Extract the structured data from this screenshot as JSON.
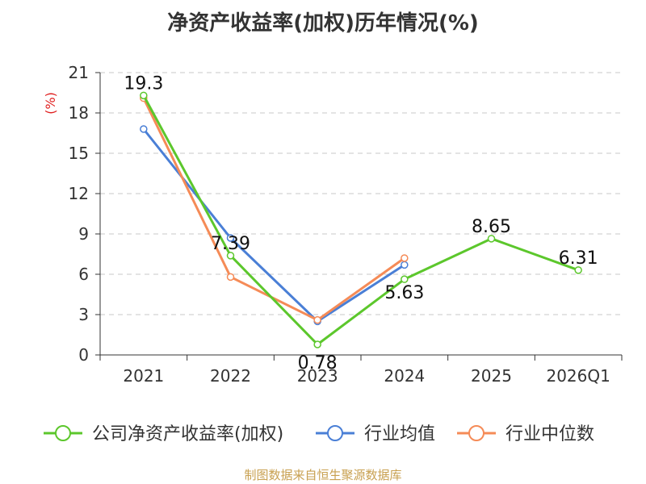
{
  "chart_data": {
    "type": "line",
    "title": "净资产收益率(加权)历年情况(%)",
    "ylabel": "(%)",
    "xlabel": "",
    "categories": [
      "2021",
      "2022",
      "2023",
      "2024",
      "2025",
      "2026Q1"
    ],
    "ylim": [
      0,
      21
    ],
    "yticks": [
      0,
      3,
      6,
      9,
      12,
      15,
      18,
      21
    ],
    "grid": true,
    "legend": "bottom",
    "series": [
      {
        "name": "公司净资产收益率(加权)",
        "color": "#5cc72c",
        "values": [
          19.3,
          7.39,
          0.78,
          5.63,
          8.65,
          6.31
        ],
        "labels": [
          "19.3",
          "7.39",
          "0.78",
          "5.63",
          "8.65",
          "6.31"
        ]
      },
      {
        "name": "行业均值",
        "color": "#4a7fd6",
        "values": [
          16.8,
          8.7,
          2.5,
          6.7,
          null,
          null
        ]
      },
      {
        "name": "行业中位数",
        "color": "#f58b57",
        "values": [
          19.1,
          5.8,
          2.6,
          7.2,
          null,
          null
        ]
      }
    ]
  },
  "footer": {
    "source": "制图数据来自恒生聚源数据库"
  }
}
